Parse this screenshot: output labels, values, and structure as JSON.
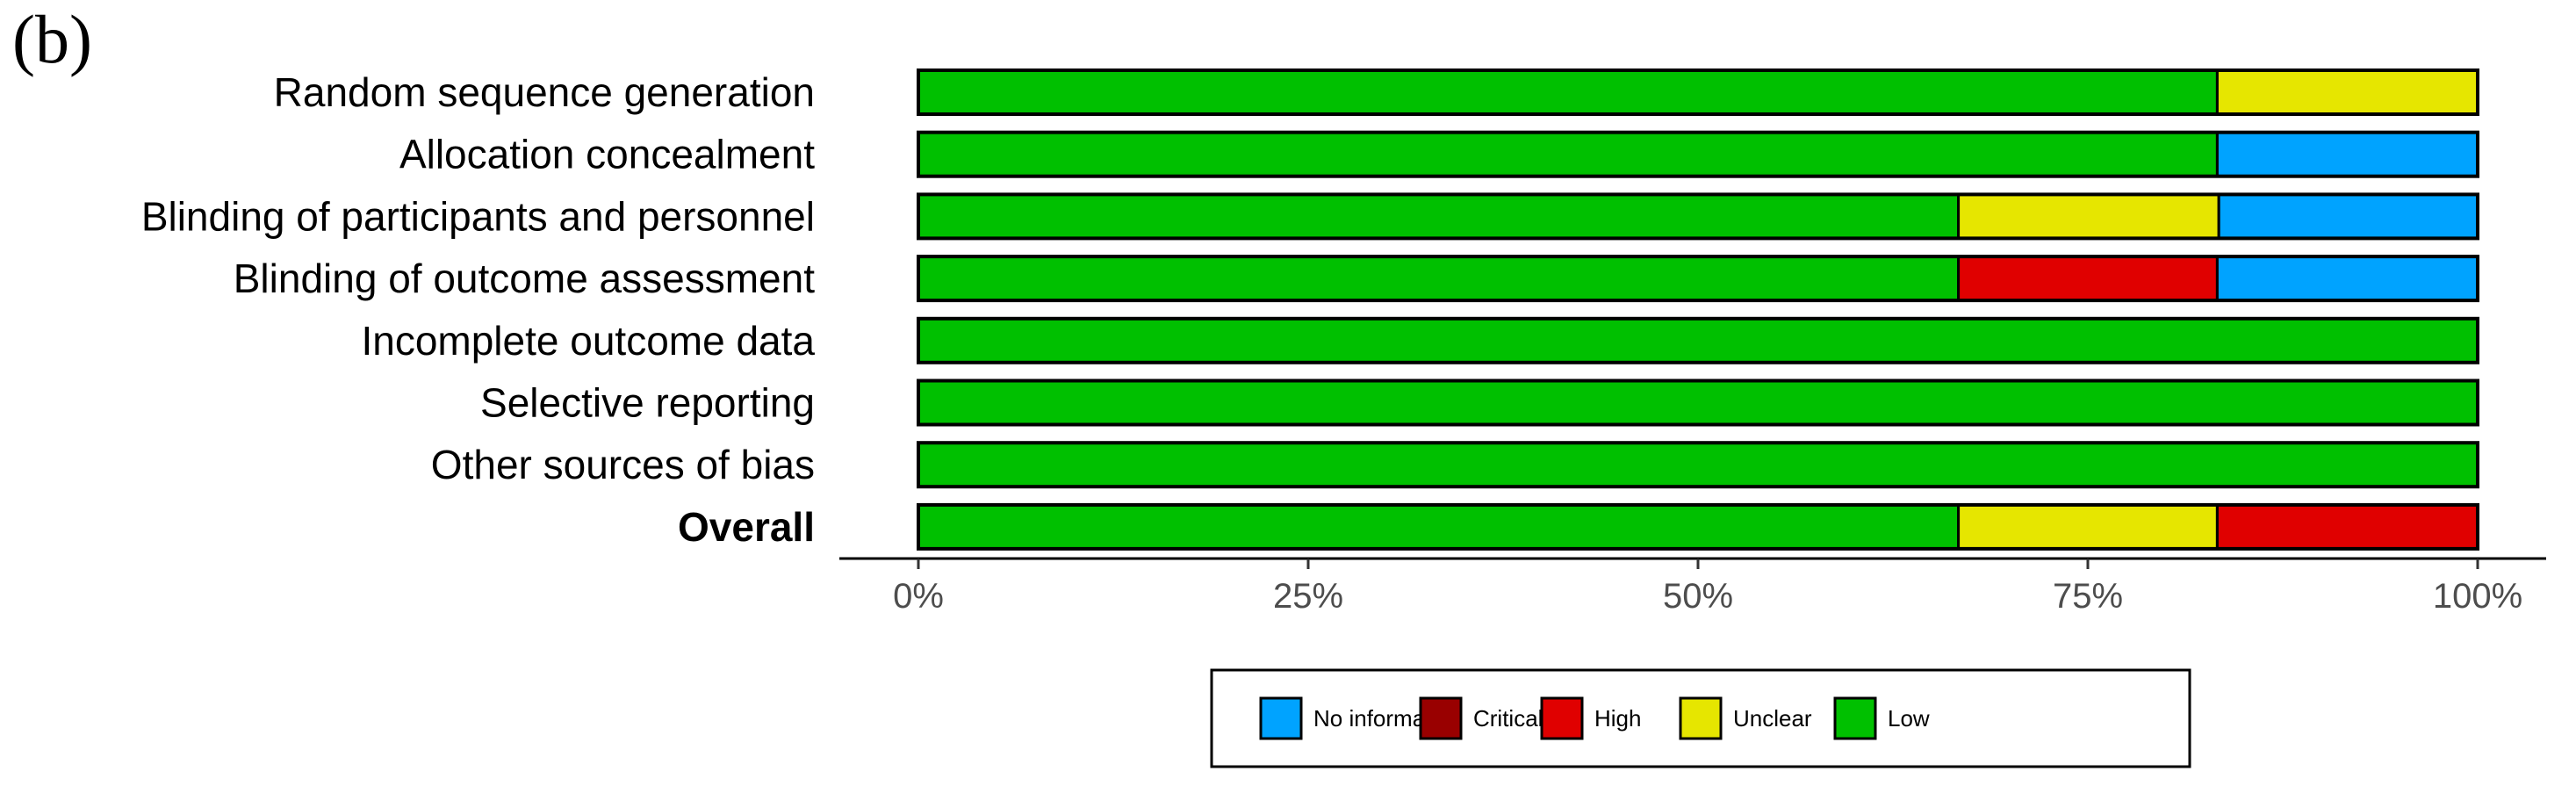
{
  "panel_label": "(b)",
  "chart_data": {
    "type": "bar",
    "orientation": "horizontal",
    "stacked": true,
    "title": "",
    "xlabel": "",
    "ylabel": "",
    "xlim": [
      0,
      100
    ],
    "x_ticks": [
      "0%",
      "25%",
      "50%",
      "75%",
      "100%"
    ],
    "x_tick_values": [
      0,
      25,
      50,
      75,
      100
    ],
    "grid": false,
    "legend_position": "bottom",
    "categories": [
      "Random sequence generation",
      "Allocation concealment",
      "Blinding of participants and personnel",
      "Blinding of outcome assessment",
      "Incomplete outcome data",
      "Selective reporting",
      "Other sources of bias",
      "Overall"
    ],
    "bold_categories": [
      "Overall"
    ],
    "series": [
      {
        "name": "Low",
        "color": "#00c000",
        "values": [
          83.3,
          83.3,
          66.7,
          66.7,
          100,
          100,
          100,
          66.7
        ]
      },
      {
        "name": "Unclear",
        "color": "#e6e600",
        "values": [
          16.7,
          0,
          16.7,
          0,
          0,
          0,
          0,
          16.6
        ]
      },
      {
        "name": "High",
        "color": "#e00000",
        "values": [
          0,
          0,
          0,
          16.6,
          0,
          0,
          0,
          16.7
        ]
      },
      {
        "name": "Critical",
        "color": "#990000",
        "values": [
          0,
          0,
          0,
          0,
          0,
          0,
          0,
          0
        ]
      },
      {
        "name": "No information",
        "color": "#00a3ff",
        "values": [
          0,
          16.7,
          16.6,
          16.7,
          0,
          0,
          0,
          0
        ]
      }
    ],
    "legend_order": [
      "No information",
      "Critical",
      "High",
      "Unclear",
      "Low"
    ]
  }
}
